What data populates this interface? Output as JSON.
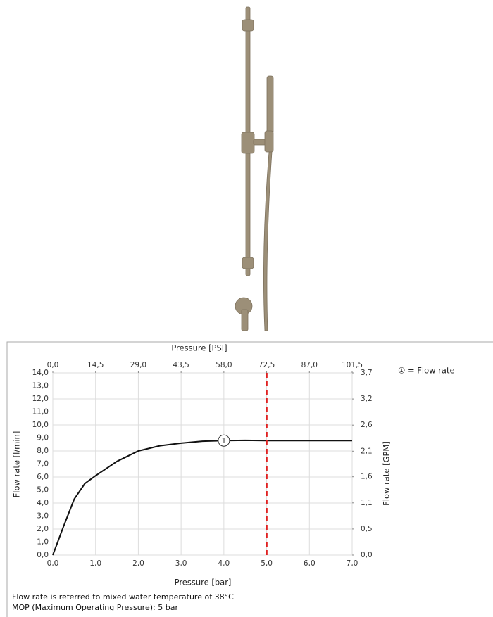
{
  "chart_data": {
    "type": "line",
    "x_label": "Pressure [bar]",
    "x2_label": "Pressure [PSI]",
    "y_label": "Flow rate [l/min]",
    "y2_label": "Flow rate [GPM]",
    "legend": "① = Flow rate",
    "x": [
      0,
      0.25,
      0.5,
      0.75,
      1.0,
      1.5,
      2.0,
      2.5,
      3.0,
      3.5,
      4.0,
      4.5,
      5.0,
      6.0,
      7.0
    ],
    "series": [
      {
        "color": "#111111",
        "values": [
          0,
          2.2,
          4.3,
          5.5,
          6.1,
          7.2,
          8.0,
          8.4,
          8.6,
          8.75,
          8.8,
          8.82,
          8.8,
          8.8,
          8.8
        ]
      }
    ],
    "annotation": {
      "label": "1",
      "x": 4.0,
      "y": 8.8
    },
    "reference_line": {
      "x": 5.0,
      "color": "#e02020"
    },
    "xlim": [
      0,
      7
    ],
    "xticks": [
      {
        "value": 0,
        "label": "0,0"
      },
      {
        "value": 1,
        "label": "1,0"
      },
      {
        "value": 2,
        "label": "2,0"
      },
      {
        "value": 3,
        "label": "3,0"
      },
      {
        "value": 4,
        "label": "4,0"
      },
      {
        "value": 5,
        "label": "5,0"
      },
      {
        "value": 6,
        "label": "6,0"
      },
      {
        "value": 7,
        "label": "7,0"
      }
    ],
    "x2lim": [
      0,
      101.5
    ],
    "x2ticks": [
      {
        "value": 0,
        "label": "0,0"
      },
      {
        "value": 14.5,
        "label": "14,5"
      },
      {
        "value": 29,
        "label": "29,0"
      },
      {
        "value": 43.5,
        "label": "43,5"
      },
      {
        "value": 58,
        "label": "58,0"
      },
      {
        "value": 72.5,
        "label": "72,5"
      },
      {
        "value": 87,
        "label": "87,0"
      },
      {
        "value": 101.5,
        "label": "101,5"
      }
    ],
    "ylim": [
      0,
      14
    ],
    "yticks": [
      {
        "value": 0,
        "label": "0,0"
      },
      {
        "value": 1,
        "label": "1,0"
      },
      {
        "value": 2,
        "label": "2,0"
      },
      {
        "value": 3,
        "label": "3,0"
      },
      {
        "value": 4,
        "label": "4,0"
      },
      {
        "value": 5,
        "label": "5,0"
      },
      {
        "value": 6,
        "label": "6,0"
      },
      {
        "value": 7,
        "label": "7,0"
      },
      {
        "value": 8,
        "label": "8,0"
      },
      {
        "value": 9,
        "label": "9,0"
      },
      {
        "value": 10,
        "label": "10,0"
      },
      {
        "value": 11,
        "label": "11,0"
      },
      {
        "value": 12,
        "label": "12,0"
      },
      {
        "value": 13,
        "label": "13,0"
      },
      {
        "value": 14,
        "label": "14,0"
      }
    ],
    "y2lim": [
      0,
      3.7
    ],
    "y2ticks": [
      {
        "value": 0,
        "label": "0,0"
      },
      {
        "value": 0.53,
        "label": "0,5"
      },
      {
        "value": 1.06,
        "label": "1,1"
      },
      {
        "value": 1.59,
        "label": "1,6"
      },
      {
        "value": 2.11,
        "label": "2,1"
      },
      {
        "value": 2.64,
        "label": "2,6"
      },
      {
        "value": 3.17,
        "label": "3,2"
      },
      {
        "value": 3.7,
        "label": "3,7"
      }
    ],
    "grid": true,
    "notes": [
      "Flow rate is referred to mixed water temperature of 38°C",
      "MOP (Maximum Operating Pressure): 5 bar"
    ]
  }
}
